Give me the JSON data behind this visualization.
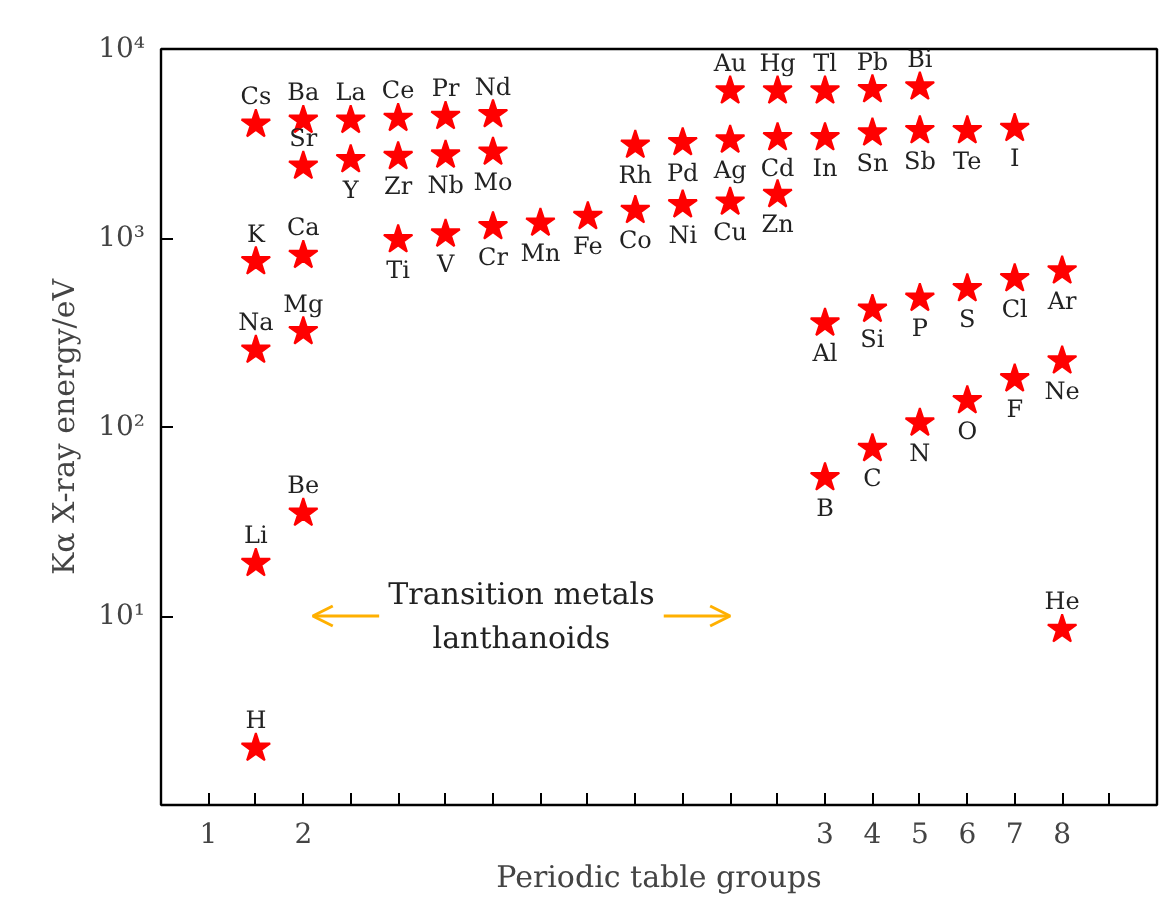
{
  "chart_data": {
    "type": "scatter",
    "xlabel": "Periodic table groups",
    "ylabel": "Kα X-ray energy/eV",
    "log": "y",
    "grid": false,
    "marker": "star",
    "ylim": [
      1,
      10000
    ],
    "categories": [
      "1",
      null,
      "2",
      null,
      null,
      null,
      null,
      null,
      null,
      null,
      null,
      null,
      null,
      "3",
      "4",
      "5",
      "6",
      "7",
      "8",
      null
    ],
    "yticks": [
      {
        "value": 1,
        "label": null
      },
      {
        "value": 10,
        "label": "10¹"
      },
      {
        "value": 100,
        "label": "10²"
      },
      {
        "value": 1000,
        "label": "10³"
      },
      {
        "value": 10000,
        "label": "10⁴"
      }
    ],
    "series": [
      {
        "color": "#ff0000",
        "values": [
          null,
          4000,
          4200,
          4200,
          4300,
          4400,
          4500,
          null,
          null,
          null,
          null,
          6000,
          6000,
          6000,
          6100,
          6300,
          null,
          null,
          null,
          null
        ],
        "value_labels": [
          null,
          "Cs",
          "Ba",
          "La",
          "Ce",
          "Pr",
          "Nd",
          null,
          null,
          null,
          null,
          "Au",
          "Hg",
          "Tl",
          "Pb",
          "Bi",
          null,
          null,
          null,
          null
        ]
      },
      {
        "color": "#ff0000",
        "values": [
          null,
          null,
          2400,
          2600,
          2700,
          2750,
          2850,
          null,
          null,
          3100,
          3200,
          3300,
          3400,
          3400,
          3600,
          3700,
          3700,
          3800,
          null,
          null
        ],
        "value_labels": [
          null,
          null,
          "Sr",
          "Y",
          "Zr",
          "Nb",
          "Mo",
          null,
          null,
          "Rh",
          "Pd",
          "Ag",
          "Cd",
          "In",
          "Sn",
          "Sb",
          "Te",
          "I",
          null,
          null
        ]
      },
      {
        "color": "#ff0000",
        "values": [
          null,
          750,
          810,
          null,
          980,
          1050,
          1150,
          1200,
          1300,
          1400,
          1500,
          1550,
          1700,
          null,
          null,
          null,
          null,
          null,
          null,
          null
        ],
        "value_labels": [
          null,
          "K",
          "Ca",
          null,
          "Ti",
          "V",
          "Cr",
          "Mn",
          "Fe",
          "Co",
          "Ni",
          "Cu",
          "Zn",
          null,
          null,
          null,
          null,
          null,
          null,
          null
        ]
      },
      {
        "color": "#ff0000",
        "values": [
          null,
          255,
          320,
          null,
          null,
          null,
          null,
          null,
          null,
          null,
          null,
          null,
          null,
          355,
          420,
          480,
          540,
          610,
          670,
          null
        ],
        "value_labels": [
          null,
          "Na",
          "Mg",
          null,
          null,
          null,
          null,
          null,
          null,
          null,
          null,
          null,
          null,
          "Al",
          "Si",
          "P",
          "S",
          "Cl",
          "Ar",
          null
        ]
      },
      {
        "color": "#ff0000",
        "values": [
          null,
          19,
          35,
          null,
          null,
          null,
          null,
          null,
          null,
          null,
          null,
          null,
          null,
          54,
          77,
          105,
          138,
          180,
          224,
          null
        ],
        "value_labels": [
          null,
          "Li",
          "Be",
          null,
          null,
          null,
          null,
          null,
          null,
          null,
          null,
          null,
          null,
          "B",
          "C",
          "N",
          "O",
          "F",
          "Ne",
          null
        ]
      },
      {
        "color": "#ff0000",
        "values": [
          null,
          2.0,
          null,
          null,
          null,
          null,
          null,
          null,
          null,
          null,
          null,
          null,
          null,
          null,
          null,
          null,
          null,
          null,
          8.5,
          null
        ],
        "value_labels": [
          null,
          "H",
          null,
          null,
          null,
          null,
          null,
          null,
          null,
          null,
          null,
          null,
          null,
          null,
          null,
          null,
          null,
          null,
          "He",
          null
        ]
      }
    ],
    "annotations": [
      "Transition metals\nlanthanoids"
    ]
  }
}
